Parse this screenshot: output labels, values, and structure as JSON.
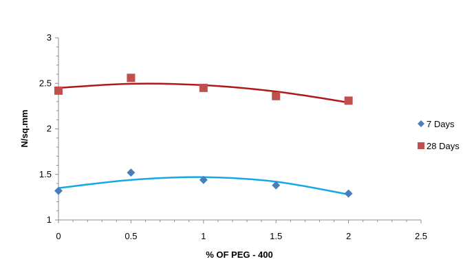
{
  "chart_data": {
    "type": "scatter",
    "title": "",
    "xlabel": "% OF PEG - 400",
    "ylabel": "N/sq.mm",
    "xlim": [
      0,
      2.5
    ],
    "ylim": [
      1,
      3
    ],
    "x_ticks": [
      0,
      0.5,
      1,
      1.5,
      2,
      2.5
    ],
    "x_tick_labels": [
      "0",
      "0.5",
      "1",
      "1.5",
      "2",
      "2.5"
    ],
    "y_ticks": [
      1,
      1.5,
      2,
      2.5,
      3
    ],
    "y_tick_labels": [
      "1",
      "1.5",
      "2",
      "2.5",
      "3"
    ],
    "grid": false,
    "legend_position": "right",
    "series": [
      {
        "name": "7 Days",
        "marker": "diamond",
        "color": "#4a7ebb",
        "trendline_color": "#16a8e6",
        "x": [
          0,
          0.5,
          1,
          1.5,
          2
        ],
        "y": [
          1.32,
          1.52,
          1.44,
          1.38,
          1.29
        ],
        "trendline_y": [
          1.35,
          1.44,
          1.47,
          1.42,
          1.28
        ]
      },
      {
        "name": "28 Days",
        "marker": "square",
        "color": "#c0504d",
        "trendline_color": "#b01818",
        "x": [
          0,
          0.5,
          1,
          1.5,
          2
        ],
        "y": [
          2.42,
          2.56,
          2.45,
          2.36,
          2.31
        ],
        "trendline_y": [
          2.45,
          2.495,
          2.48,
          2.41,
          2.29
        ]
      }
    ]
  }
}
